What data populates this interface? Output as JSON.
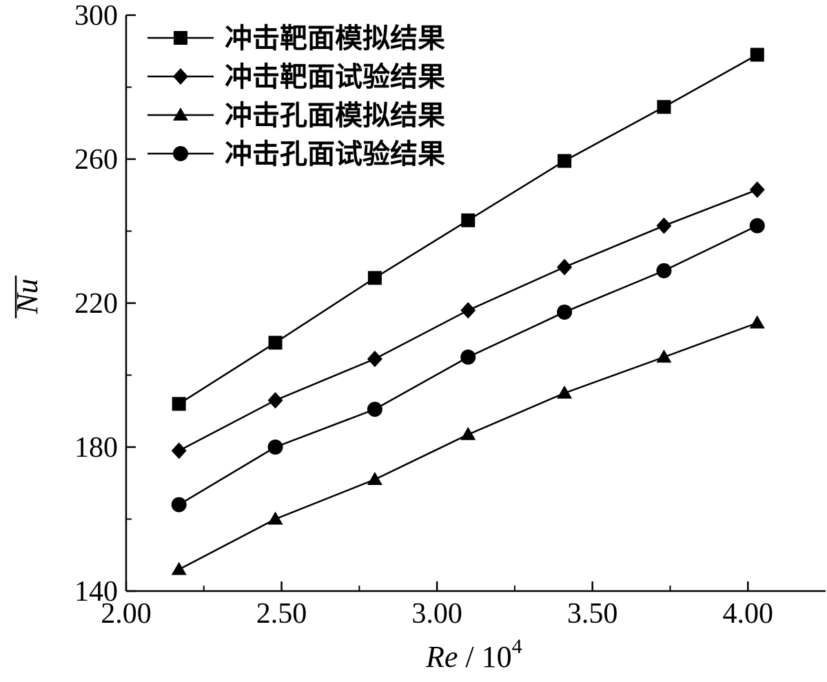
{
  "chart_data": {
    "type": "line",
    "title": "",
    "xlabel_italic": "Re",
    "xlabel_rest": " / 10",
    "xlabel_sup": "4",
    "ylabel": "Nu",
    "xlim": [
      2.0,
      4.25
    ],
    "ylim": [
      140,
      300
    ],
    "x_ticks": [
      2.0,
      2.5,
      3.0,
      3.5,
      4.0
    ],
    "x_tick_labels": [
      "2.00",
      "2.50",
      "3.00",
      "3.50",
      "4.00"
    ],
    "y_ticks": [
      140,
      180,
      220,
      260,
      300
    ],
    "y_tick_labels": [
      "140",
      "180",
      "220",
      "260",
      "300"
    ],
    "grid": false,
    "legend_position": "top-left",
    "x": [
      2.17,
      2.48,
      2.8,
      3.1,
      3.41,
      3.73,
      4.03
    ],
    "series": [
      {
        "name": "冲击靶面模拟结果",
        "marker": "square",
        "values": [
          192,
          209,
          227,
          243,
          259.5,
          274.5,
          289
        ]
      },
      {
        "name": "冲击靶面试验结果",
        "marker": "diamond",
        "values": [
          179,
          193,
          204.5,
          218,
          230,
          241.5,
          251.5
        ]
      },
      {
        "name": "冲击孔面模拟结果",
        "marker": "triangle",
        "values": [
          146,
          160,
          171,
          183.5,
          195,
          205,
          214.5
        ]
      },
      {
        "name": "冲击孔面试验结果",
        "marker": "circle",
        "values": [
          164,
          180,
          190.5,
          205,
          217.5,
          229,
          241.5
        ]
      }
    ]
  }
}
